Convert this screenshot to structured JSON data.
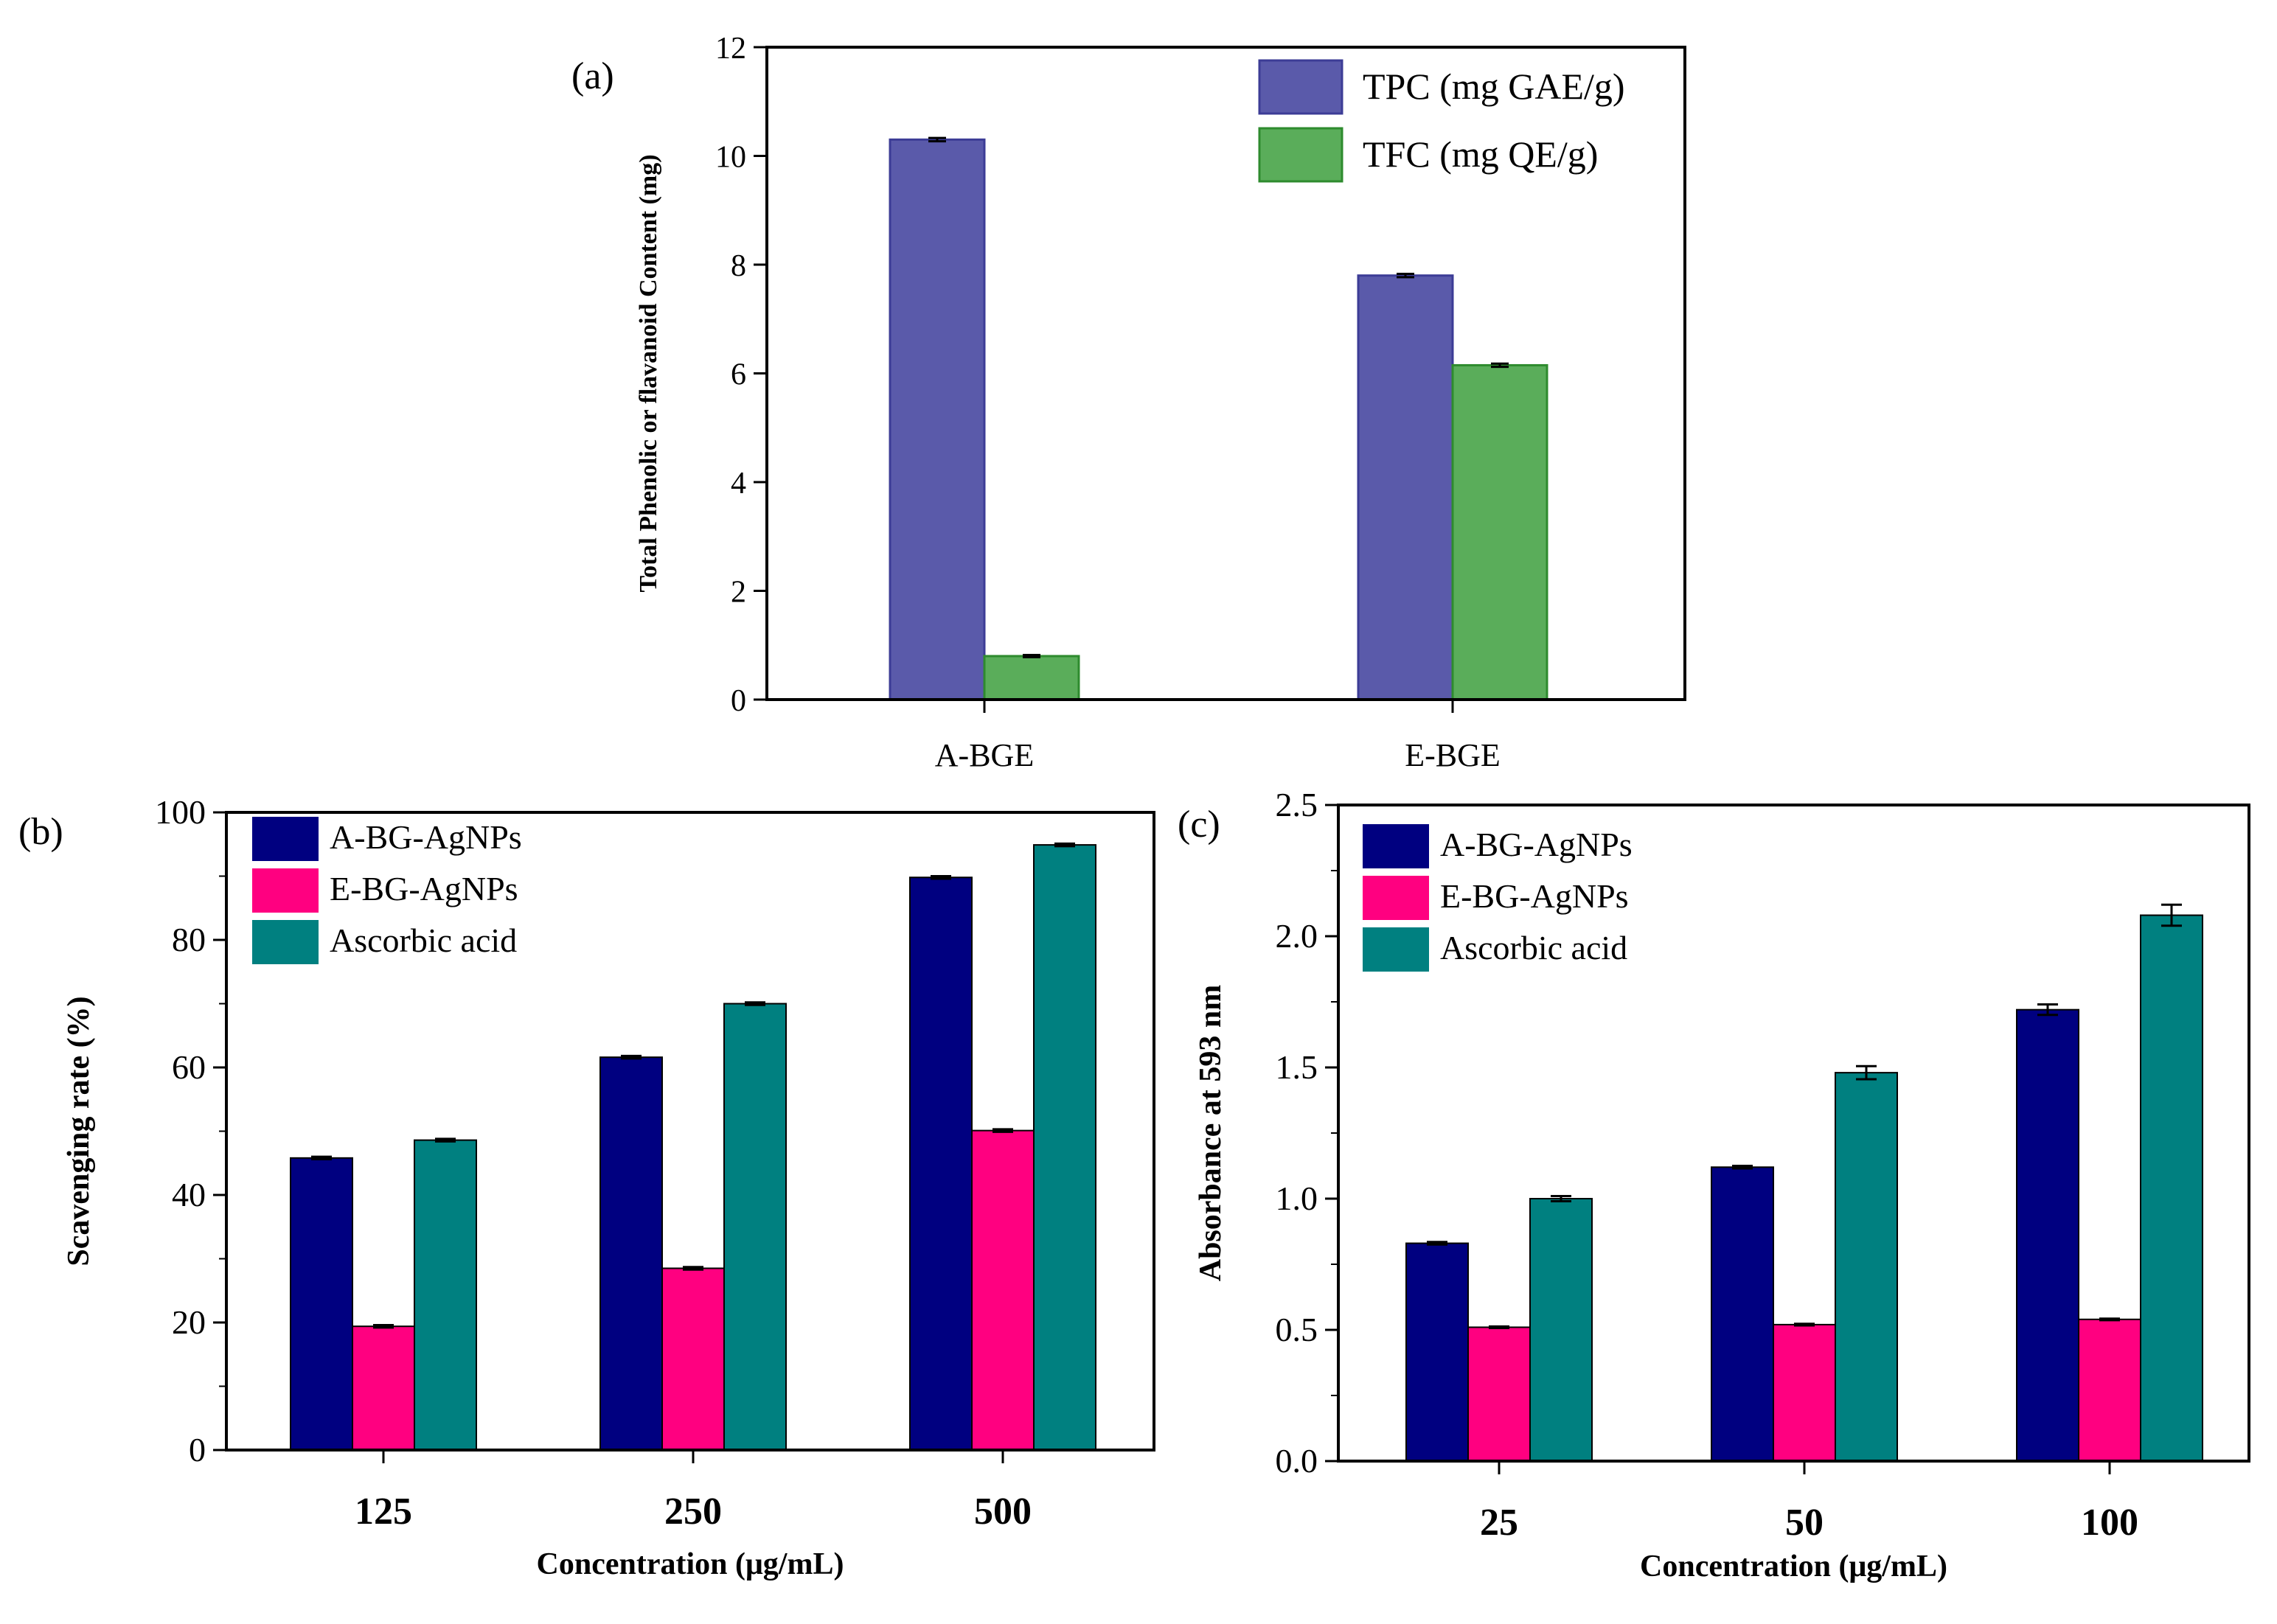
{
  "chart_data": [
    {
      "type": "bar",
      "panel_label": "(a)",
      "categories": [
        "A-BGE",
        "E-BGE"
      ],
      "series": [
        {
          "name": "TPC (mg GAE/g)",
          "values": [
            10.3,
            7.8
          ],
          "errors": [
            0.03,
            0.03
          ],
          "color": "#5A5AAA",
          "stroke": "#3C3C96"
        },
        {
          "name": "TFC (mg QE/g)",
          "values": [
            0.8,
            6.15
          ],
          "errors": [
            0.02,
            0.03
          ],
          "color": "#5AAD5A",
          "stroke": "#2E8B2E"
        }
      ],
      "xlabel": "",
      "ylabel": "Total Phenolic or flavanoid Content (mg)",
      "ylim": [
        0,
        12
      ],
      "yticks": [
        0,
        2,
        4,
        6,
        8,
        10,
        12
      ],
      "ytick_labels": [
        "0",
        "2",
        "4",
        "6",
        "8",
        "10",
        "12"
      ],
      "legend_position": "top-right"
    },
    {
      "type": "bar",
      "panel_label": "(b)",
      "categories": [
        "125",
        "250",
        "500"
      ],
      "series": [
        {
          "name": "A-BG-AgNPs",
          "values": [
            45.8,
            61.6,
            89.8
          ],
          "errors": [
            0.2,
            0.2,
            0.2
          ],
          "color": "#000080",
          "stroke": "#000000"
        },
        {
          "name": "E-BG-AgNPs",
          "values": [
            19.4,
            28.5,
            50.1
          ],
          "errors": [
            0.2,
            0.2,
            0.2
          ],
          "color": "#FF0080",
          "stroke": "#000000"
        },
        {
          "name": "Ascorbic acid",
          "values": [
            48.6,
            70.0,
            94.9
          ],
          "errors": [
            0.2,
            0.2,
            0.2
          ],
          "color": "#008080",
          "stroke": "#000000"
        }
      ],
      "xlabel": "Concentration (μg/mL)",
      "ylabel": "Scavenging rate (%)",
      "ylim": [
        0,
        100
      ],
      "yticks": [
        0,
        20,
        40,
        60,
        80,
        100
      ],
      "ytick_labels": [
        "0",
        "20",
        "40",
        "60",
        "80",
        "100"
      ],
      "legend_position": "top-left"
    },
    {
      "type": "bar",
      "panel_label": "(c)",
      "categories": [
        "25",
        "50",
        "100"
      ],
      "series": [
        {
          "name": "A-BG-AgNPs",
          "values": [
            0.83,
            1.12,
            1.72
          ],
          "errors": [
            0.005,
            0.005,
            0.02
          ],
          "color": "#000080",
          "stroke": "#000000"
        },
        {
          "name": "E-BG-AgNPs",
          "values": [
            0.51,
            0.52,
            0.54
          ],
          "errors": [
            0.003,
            0.003,
            0.003
          ],
          "color": "#FF0080",
          "stroke": "#000000"
        },
        {
          "name": "Ascorbic acid",
          "values": [
            1.0,
            1.48,
            2.08
          ],
          "errors": [
            0.01,
            0.025,
            0.04
          ],
          "color": "#008080",
          "stroke": "#000000"
        }
      ],
      "xlabel": "Concentration (μg/mL)",
      "ylabel": "Absorbance at 593 nm",
      "ylim": [
        0,
        2.5
      ],
      "yticks": [
        0,
        0.5,
        1.0,
        1.5,
        2.0,
        2.5
      ],
      "ytick_labels": [
        "0.0",
        "0.5",
        "1.0",
        "1.5",
        "2.0",
        "2.5"
      ],
      "legend_position": "top-left"
    }
  ]
}
